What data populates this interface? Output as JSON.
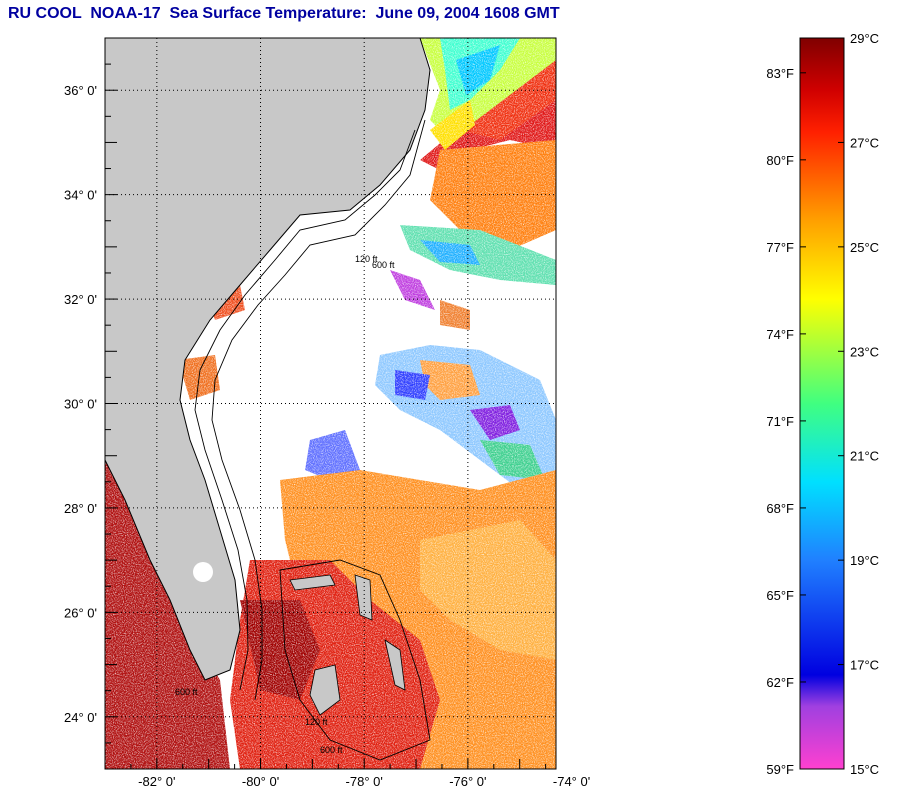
{
  "title": "RU COOL  NOAA-17  Sea Surface Temperature:  June 09, 2004 1608 GMT",
  "map": {
    "lat_ticks": [
      {
        "value": 36,
        "label": "36° 0'"
      },
      {
        "value": 34,
        "label": "34° 0'"
      },
      {
        "value": 32,
        "label": "32° 0'"
      },
      {
        "value": 30,
        "label": "30° 0'"
      },
      {
        "value": 28,
        "label": "28° 0'"
      },
      {
        "value": 26,
        "label": "26° 0'"
      },
      {
        "value": 24,
        "label": "24° 0'"
      }
    ],
    "lon_ticks": [
      {
        "value": -82,
        "label": "-82° 0'"
      },
      {
        "value": -80,
        "label": "-80° 0'"
      },
      {
        "value": -78,
        "label": "-78° 0'"
      },
      {
        "value": -76,
        "label": "-76° 0'"
      },
      {
        "value": -74,
        "label": "-74° 0'"
      }
    ],
    "lon_range": [
      -83,
      -74.3
    ],
    "lat_range": [
      23,
      37
    ],
    "contour_labels": [
      "120 ft",
      "600 ft"
    ],
    "colors": {
      "land": "#c8c8c8",
      "cloud": "#ffffff"
    }
  },
  "colorbar": {
    "min_c": 15,
    "max_c": 29,
    "celsius_labels": [
      {
        "value": 29,
        "label": "29°C"
      },
      {
        "value": 27,
        "label": "27°C"
      },
      {
        "value": 25,
        "label": "25°C"
      },
      {
        "value": 23,
        "label": "23°C"
      },
      {
        "value": 21,
        "label": "21°C"
      },
      {
        "value": 19,
        "label": "19°C"
      },
      {
        "value": 17,
        "label": "17°C"
      },
      {
        "value": 15,
        "label": "15°C"
      }
    ],
    "fahrenheit_labels": [
      {
        "value": 83,
        "label": "83°F"
      },
      {
        "value": 80,
        "label": "80°F"
      },
      {
        "value": 77,
        "label": "77°F"
      },
      {
        "value": 74,
        "label": "74°F"
      },
      {
        "value": 71,
        "label": "71°F"
      },
      {
        "value": 68,
        "label": "68°F"
      },
      {
        "value": 65,
        "label": "65°F"
      },
      {
        "value": 62,
        "label": "62°F"
      },
      {
        "value": 59,
        "label": "59°F"
      }
    ],
    "stops": [
      {
        "t": 15,
        "color": "#ff40d0"
      },
      {
        "t": 16.2,
        "color": "#a040e0"
      },
      {
        "t": 16.8,
        "color": "#0000e0"
      },
      {
        "t": 19,
        "color": "#2080ff"
      },
      {
        "t": 20.5,
        "color": "#00e0ff"
      },
      {
        "t": 22,
        "color": "#40ff80"
      },
      {
        "t": 24,
        "color": "#ffff00"
      },
      {
        "t": 25.5,
        "color": "#ffa000"
      },
      {
        "t": 27.2,
        "color": "#ff2000"
      },
      {
        "t": 28,
        "color": "#d00000"
      },
      {
        "t": 29,
        "color": "#800000"
      }
    ]
  }
}
